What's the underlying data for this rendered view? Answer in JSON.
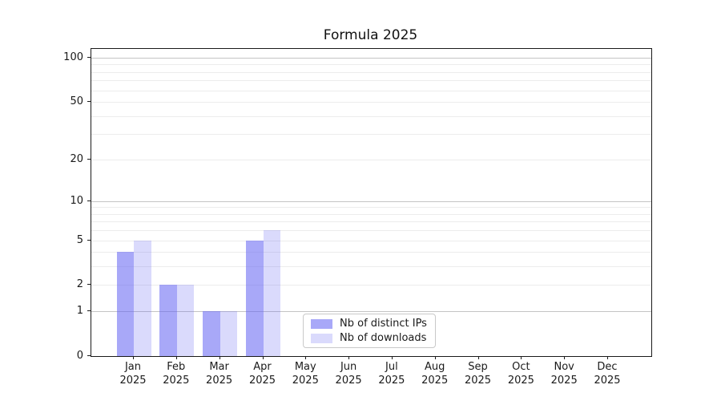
{
  "title": "Formula 2025",
  "chart_data": {
    "type": "bar",
    "title": "Formula 2025",
    "categories": [
      "Jan",
      "Feb",
      "Mar",
      "Apr",
      "May",
      "Jun",
      "Jul",
      "Aug",
      "Sep",
      "Oct",
      "Nov",
      "Dec"
    ],
    "year": "2025",
    "series": [
      {
        "name": "Nb of distinct IPs",
        "color": "rgba(102,102,242,0.57)",
        "values": [
          4,
          2,
          1,
          5,
          0,
          0,
          0,
          0,
          0,
          0,
          0,
          0
        ]
      },
      {
        "name": "Nb of downloads",
        "color": "rgba(102,102,242,0.24)",
        "values": [
          5,
          2,
          1,
          6,
          0,
          0,
          0,
          0,
          0,
          0,
          0,
          0
        ]
      }
    ],
    "xlabel": "",
    "ylabel": "",
    "yscale": "log10(1+v)",
    "ylim": [
      0,
      117
    ],
    "y_tick_values": [
      0,
      1,
      2,
      5,
      10,
      20,
      50,
      100
    ],
    "y_tick_labels": [
      "0",
      "1",
      "2",
      "5",
      "10",
      "20",
      "50",
      "100"
    ],
    "y_minor_gridlines": [
      2,
      3,
      4,
      5,
      6,
      7,
      8,
      9,
      20,
      30,
      40,
      50,
      60,
      70,
      80,
      90
    ],
    "y_major_gridlines": [
      1,
      10,
      100
    ],
    "grid": true,
    "legend_position": "lower center"
  },
  "colors": {
    "bar_distinct_ips": "rgba(102,102,242,0.57)",
    "bar_downloads": "rgba(102,102,242,0.24)",
    "grid_minor": "#ececec",
    "grid_major": "#c4c4c4",
    "spine": "#1a1a1a",
    "background": "#ffffff"
  }
}
